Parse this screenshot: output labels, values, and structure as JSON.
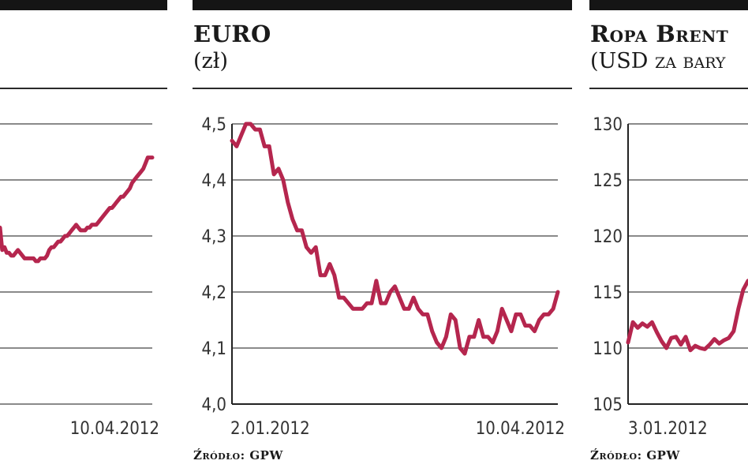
{
  "colors": {
    "line": "#b5264e",
    "grid": "#444444",
    "header_bar": "#151515"
  },
  "panels": [
    {
      "title": "",
      "subtitle": "",
      "source": ""
    },
    {
      "title": "EURO",
      "subtitle": "(zł)",
      "source": "Źródło: GPW"
    },
    {
      "title": "Ropa Brent",
      "subtitle": "(USD za bary",
      "source": "Źródło: GPW"
    }
  ],
  "chart_data": [
    {
      "type": "line",
      "x_start": "",
      "x_end": "10.04.2012",
      "series": [
        {
          "values": [
            63,
            55,
            56,
            54,
            54,
            53,
            53,
            54,
            55,
            54,
            53,
            52,
            52,
            52,
            52,
            52,
            51,
            51,
            52,
            52,
            52,
            53,
            55,
            56,
            56,
            57,
            58,
            58,
            59,
            60,
            60,
            61,
            62,
            63,
            64,
            63,
            62,
            62,
            62,
            63,
            63,
            64,
            64,
            64,
            65,
            66,
            67,
            68,
            69,
            70,
            70,
            71,
            72,
            73,
            74,
            74,
            75,
            76,
            77,
            79,
            80,
            81,
            82,
            83,
            84,
            86,
            88,
            88,
            88
          ]
        }
      ],
      "ylim": [
        0,
        100
      ]
    },
    {
      "type": "line",
      "x_start": "2.01.2012",
      "x_end": "10.04.2012",
      "yticks": [
        "4,0",
        "4,1",
        "4,2",
        "4,3",
        "4,4",
        "4,5"
      ],
      "ylim": [
        4.0,
        4.5
      ],
      "series": [
        {
          "values": [
            4.47,
            4.46,
            4.48,
            4.5,
            4.5,
            4.49,
            4.49,
            4.46,
            4.46,
            4.41,
            4.42,
            4.4,
            4.36,
            4.33,
            4.31,
            4.31,
            4.28,
            4.27,
            4.28,
            4.23,
            4.23,
            4.25,
            4.23,
            4.19,
            4.19,
            4.18,
            4.17,
            4.17,
            4.17,
            4.18,
            4.18,
            4.22,
            4.18,
            4.18,
            4.2,
            4.21,
            4.19,
            4.17,
            4.17,
            4.19,
            4.17,
            4.16,
            4.16,
            4.13,
            4.11,
            4.1,
            4.12,
            4.16,
            4.15,
            4.1,
            4.09,
            4.12,
            4.12,
            4.15,
            4.12,
            4.12,
            4.11,
            4.13,
            4.17,
            4.15,
            4.13,
            4.16,
            4.16,
            4.14,
            4.14,
            4.13,
            4.15,
            4.16,
            4.16,
            4.17,
            4.2
          ]
        }
      ]
    },
    {
      "type": "line",
      "x_start": "3.01.2012",
      "x_end": "",
      "yticks": [
        "105",
        "110",
        "115",
        "120",
        "125",
        "130"
      ],
      "ylim": [
        105,
        130
      ],
      "series": [
        {
          "values": [
            110.5,
            112.3,
            111.8,
            112.2,
            111.9,
            112.3,
            111.4,
            110.6,
            110.0,
            110.9,
            111.0,
            110.3,
            111.0,
            109.8,
            110.2,
            110.0,
            109.9,
            110.3,
            110.8,
            110.4,
            110.7,
            110.9,
            111.5,
            113.5,
            115.2,
            116.0
          ]
        }
      ]
    }
  ]
}
